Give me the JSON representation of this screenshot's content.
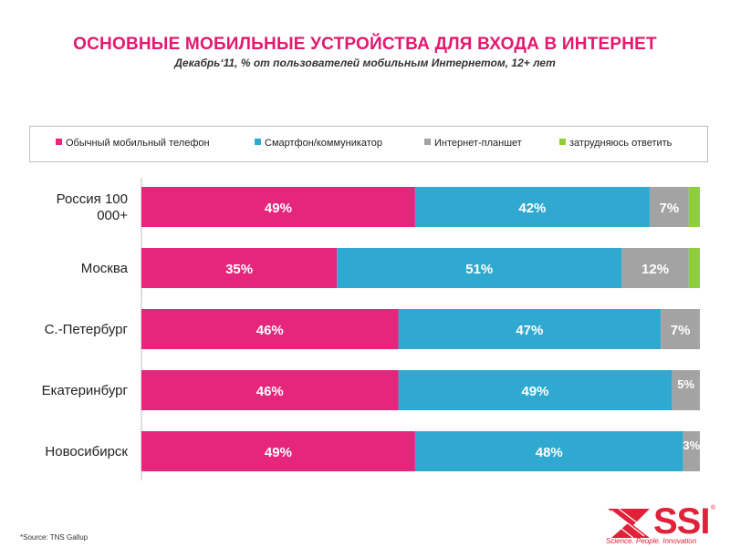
{
  "header": {
    "title": "ОСНОВНЫЕ МОБИЛЬНЫЕ УСТРОЙСТВА ДЛЯ ВХОДА В ИНТЕРНЕТ",
    "subtitle": "Декабрь‘11, % от пользователей мобильным Интернетом, 12+ лет"
  },
  "chart_data": {
    "type": "bar",
    "orientation": "horizontal",
    "stacked": true,
    "xlim": [
      0,
      100
    ],
    "legend_position": "top",
    "grid": false,
    "categories": [
      "Россия 100 000+",
      "Москва",
      "С.-Петербург",
      "Екатеринбург",
      "Новосибирск"
    ],
    "series": [
      {
        "name": "Обычный мобильный телефон",
        "color": "#e5267c",
        "values": [
          49,
          35,
          46,
          46,
          49
        ],
        "labels": [
          "49%",
          "35%",
          "46%",
          "46%",
          "49%"
        ]
      },
      {
        "name": "Смартфон/коммуникатор",
        "color": "#2fa9d0",
        "values": [
          42,
          51,
          47,
          49,
          48
        ],
        "labels": [
          "42%",
          "51%",
          "47%",
          "49%",
          "48%"
        ]
      },
      {
        "name": "Интернет-планшет",
        "color": "#a3a3a3",
        "values": [
          7,
          12,
          7,
          5,
          3
        ],
        "labels": [
          "7%",
          "12%",
          "7%",
          "5%",
          "3%"
        ]
      },
      {
        "name": "затрудняюсь ответить",
        "color": "#8fce3a",
        "values": [
          2,
          2,
          0,
          0,
          0
        ],
        "labels": [
          "",
          "",
          "",
          "",
          ""
        ]
      }
    ]
  },
  "footer": {
    "source": "*Source: TNS Gallup",
    "logo_text": "SSI",
    "logo_reg": "®",
    "tagline": "Science. People. Innovation"
  }
}
